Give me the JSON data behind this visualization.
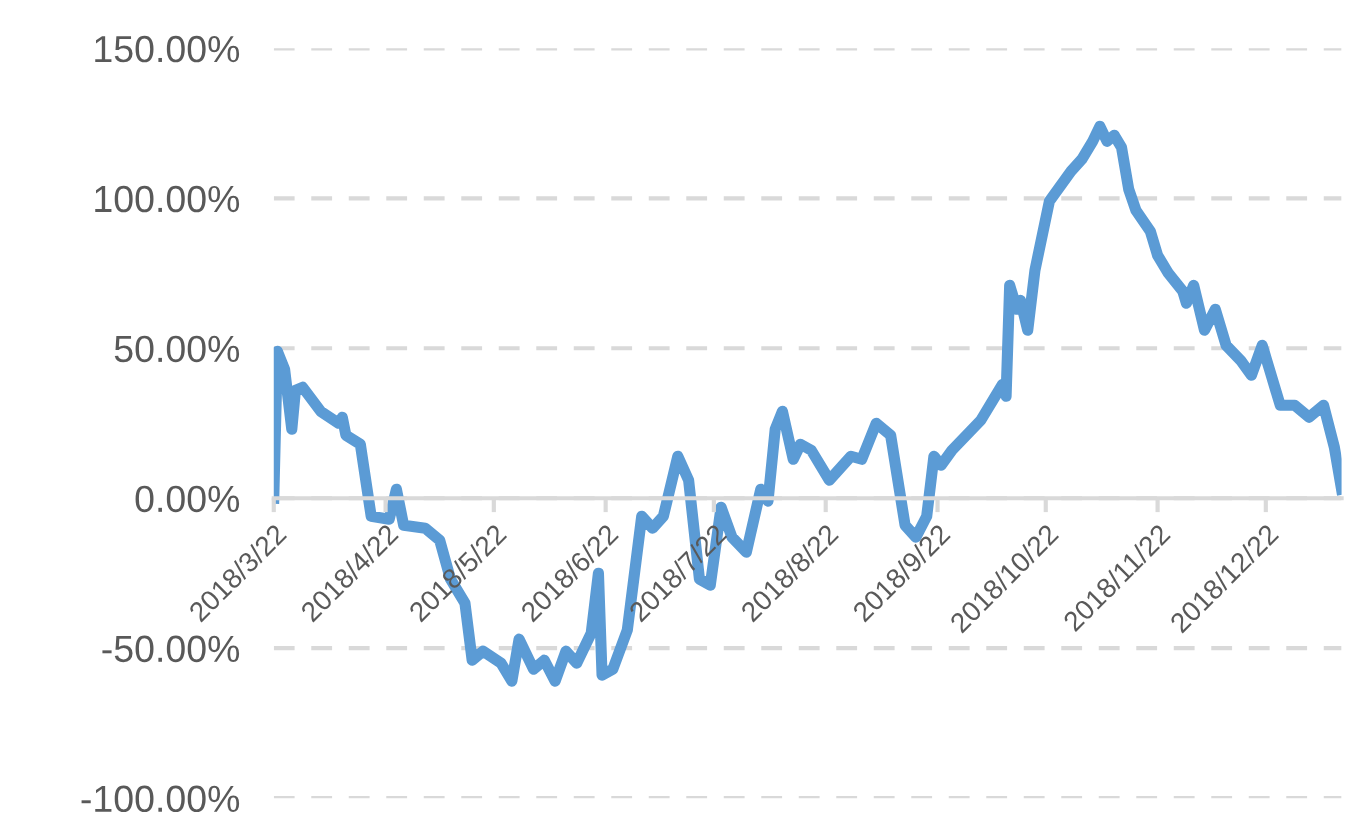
{
  "chart_data": {
    "type": "line",
    "color": "#5b9bd5",
    "grid": "y",
    "line_style": "solid",
    "marker": "none",
    "x": [
      "2018-03-22",
      "2018-03-23",
      "2018-03-25",
      "2018-03-27",
      "2018-03-28",
      "2018-03-30",
      "2018-04-04",
      "2018-04-09",
      "2018-04-10",
      "2018-04-11",
      "2018-04-15",
      "2018-04-18",
      "2018-04-23",
      "2018-04-25",
      "2018-04-27",
      "2018-05-03",
      "2018-05-07",
      "2018-05-10",
      "2018-05-14",
      "2018-05-16",
      "2018-05-19",
      "2018-05-24",
      "2018-05-27",
      "2018-05-29",
      "2018-06-02",
      "2018-06-05",
      "2018-06-08",
      "2018-06-11",
      "2018-06-14",
      "2018-06-18",
      "2018-06-20",
      "2018-06-21",
      "2018-06-24",
      "2018-06-28",
      "2018-07-02",
      "2018-07-05",
      "2018-07-08",
      "2018-07-12",
      "2018-07-15",
      "2018-07-18",
      "2018-07-21",
      "2018-07-24",
      "2018-07-27",
      "2018-07-31",
      "2018-08-04",
      "2018-08-06",
      "2018-08-08",
      "2018-08-10",
      "2018-08-13",
      "2018-08-15",
      "2018-08-18",
      "2018-08-23",
      "2018-08-29",
      "2018-09-01",
      "2018-09-05",
      "2018-09-09",
      "2018-09-13",
      "2018-09-16",
      "2018-09-19",
      "2018-09-21",
      "2018-09-23",
      "2018-09-26",
      "2018-10-04",
      "2018-10-10",
      "2018-10-11",
      "2018-10-12",
      "2018-10-14",
      "2018-10-15",
      "2018-10-17",
      "2018-10-19",
      "2018-10-23",
      "2018-10-29",
      "2018-11-01",
      "2018-11-04",
      "2018-11-06",
      "2018-11-08",
      "2018-11-10",
      "2018-11-12",
      "2018-11-14",
      "2018-11-16",
      "2018-11-20",
      "2018-11-22",
      "2018-11-25",
      "2018-11-29",
      "2018-11-30",
      "2018-12-02",
      "2018-12-05",
      "2018-12-08",
      "2018-12-11",
      "2018-12-15",
      "2018-12-18",
      "2018-12-21",
      "2018-12-23",
      "2018-12-26",
      "2018-12-30",
      "2019-01-03",
      "2019-01-07",
      "2019-01-10",
      "2019-01-12"
    ],
    "values": [
      0,
      49,
      43,
      23,
      36,
      37,
      29,
      25,
      27,
      21,
      18,
      -6,
      -7,
      3,
      -9,
      -10,
      -14,
      -27,
      -35,
      -54,
      -51,
      -55,
      -61,
      -47,
      -57,
      -54,
      -61,
      -51,
      -55,
      -45,
      -25,
      -59,
      -57,
      -44,
      -6,
      -10,
      -6,
      14,
      6,
      -27,
      -29,
      -3,
      -13,
      -18,
      3,
      -1,
      23,
      29,
      13,
      18,
      16,
      6,
      14,
      13,
      25,
      21,
      -9,
      -13,
      -6,
      14,
      11,
      16,
      26,
      38,
      34,
      71,
      63,
      66,
      56,
      76,
      99,
      109,
      113,
      119,
      124,
      119,
      121,
      117,
      103,
      96,
      89,
      81,
      75,
      69,
      65,
      71,
      56,
      63,
      51,
      46,
      41,
      51,
      43,
      31,
      31,
      27,
      31,
      17,
      3
    ],
    "xlim": [
      "2018-03-22",
      "2019-01-12"
    ],
    "xticks": [
      {
        "value": "2018-03-22",
        "label": "2018/3/22"
      },
      {
        "value": "2018-04-22",
        "label": "2018/4/22"
      },
      {
        "value": "2018-05-22",
        "label": "2018/5/22"
      },
      {
        "value": "2018-06-22",
        "label": "2018/6/22"
      },
      {
        "value": "2018-07-22",
        "label": "2018/7/22"
      },
      {
        "value": "2018-08-22",
        "label": "2018/8/22"
      },
      {
        "value": "2018-09-22",
        "label": "2018/9/22"
      },
      {
        "value": "2018-10-22",
        "label": "2018/10/22"
      },
      {
        "value": "2018-11-22",
        "label": "2018/11/22"
      },
      {
        "value": "2018-12-22",
        "label": "2018/12/22"
      }
    ],
    "ylim": [
      -100,
      150
    ],
    "yticks": [
      {
        "value": -100,
        "label": "-100.00%"
      },
      {
        "value": -50,
        "label": "-50.00%"
      },
      {
        "value": 0,
        "label": "0.00%"
      },
      {
        "value": 50,
        "label": "50.00%"
      },
      {
        "value": 100,
        "label": "100.00%"
      },
      {
        "value": 150,
        "label": "150.00%"
      }
    ]
  }
}
